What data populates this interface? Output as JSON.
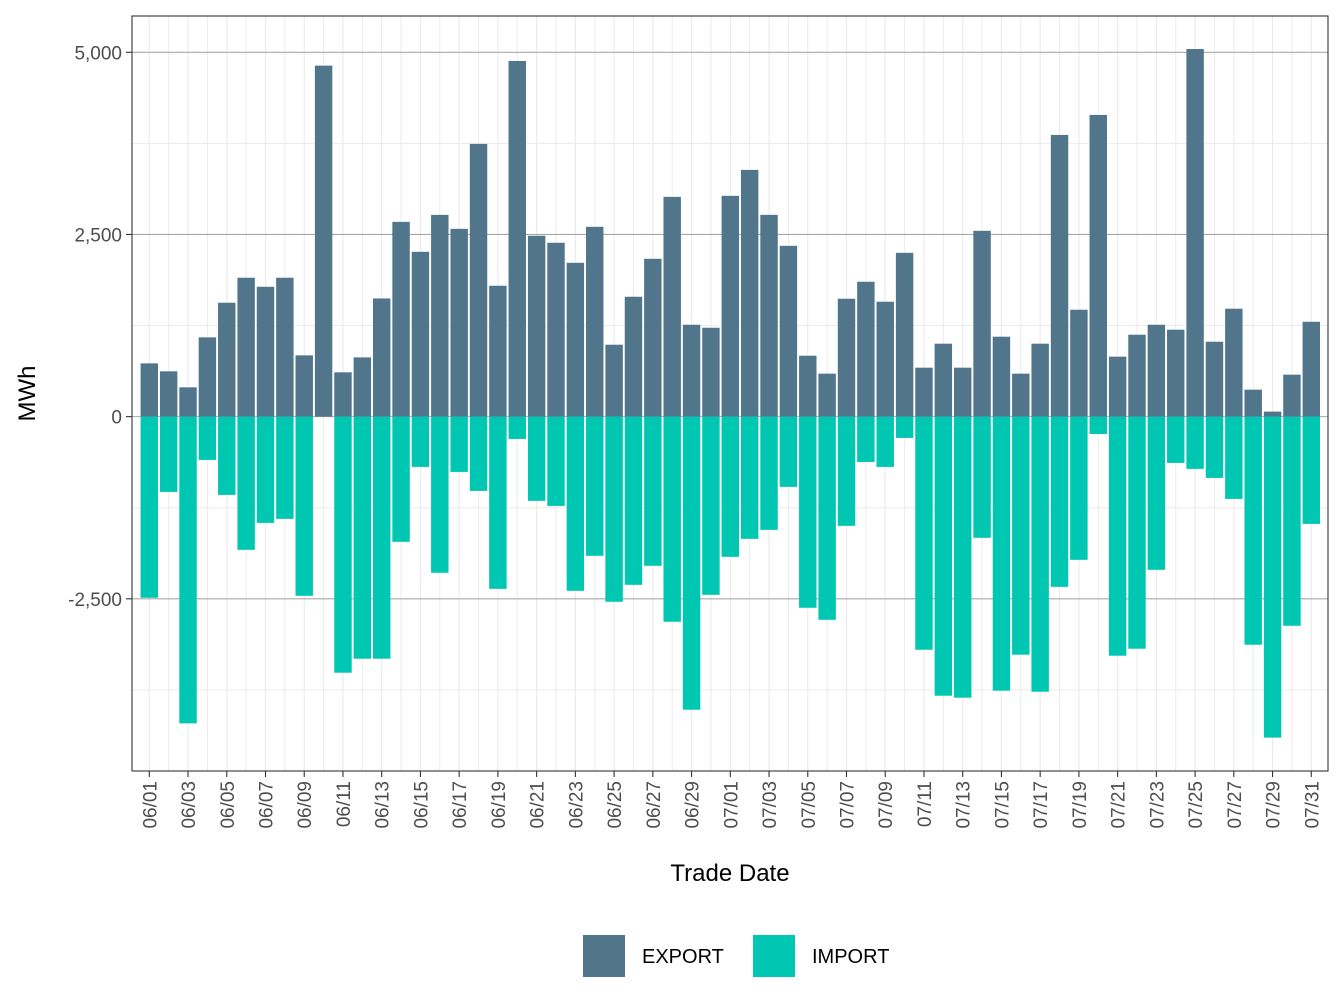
{
  "chart_data": {
    "type": "bar",
    "stacking": "diverging",
    "title": "",
    "xlabel": "Trade Date",
    "ylabel": "MWh",
    "ylim": [
      -4863,
      5498
    ],
    "yticks": [
      -2500,
      0,
      2500,
      5000
    ],
    "ytick_labels": [
      "-2,500",
      "0",
      "2,500",
      "5,000"
    ],
    "grid": true,
    "legend_position": "bottom",
    "categories": [
      "06/01",
      "06/02",
      "06/03",
      "06/04",
      "06/05",
      "06/06",
      "06/07",
      "06/08",
      "06/09",
      "06/10",
      "06/11",
      "06/12",
      "06/13",
      "06/14",
      "06/15",
      "06/16",
      "06/17",
      "06/18",
      "06/19",
      "06/20",
      "06/21",
      "06/22",
      "06/23",
      "06/24",
      "06/25",
      "06/26",
      "06/27",
      "06/28",
      "06/29",
      "06/30",
      "07/01",
      "07/02",
      "07/03",
      "07/04",
      "07/05",
      "07/06",
      "07/07",
      "07/08",
      "07/09",
      "07/10",
      "07/11",
      "07/12",
      "07/13",
      "07/14",
      "07/15",
      "07/16",
      "07/17",
      "07/18",
      "07/19",
      "07/20",
      "07/21",
      "07/22",
      "07/23",
      "07/24",
      "07/25",
      "07/26",
      "07/27",
      "07/28",
      "07/29",
      "07/30",
      "07/31"
    ],
    "xtick_labels": [
      "06/01",
      "06/03",
      "06/05",
      "06/07",
      "06/09",
      "06/11",
      "06/13",
      "06/15",
      "06/17",
      "06/19",
      "06/21",
      "06/23",
      "06/25",
      "06/27",
      "06/29",
      "07/01",
      "07/03",
      "07/05",
      "07/07",
      "07/09",
      "07/11",
      "07/13",
      "07/15",
      "07/17",
      "07/19",
      "07/21",
      "07/23",
      "07/25",
      "07/27",
      "07/29",
      "07/31"
    ],
    "series": [
      {
        "name": "EXPORT",
        "color": "#51758a",
        "values": [
          731,
          622,
          402,
          1088,
          1563,
          1906,
          1782,
          1906,
          841,
          4817,
          608,
          813,
          1622,
          2673,
          2262,
          2769,
          2577,
          3743,
          1796,
          4881,
          2482,
          2386,
          2111,
          2605,
          987,
          1645,
          2166,
          3016,
          1261,
          1220,
          3030,
          3386,
          2769,
          2344,
          836,
          590,
          1618,
          1851,
          1577,
          2248,
          672,
          1001,
          672,
          2550,
          1097,
          590,
          1001,
          3866,
          1467,
          4140,
          823,
          1124,
          1261,
          1193,
          5045,
          1028,
          1481,
          370,
          69,
          576,
          1302
        ]
      },
      {
        "name": "IMPORT",
        "color": "#00c7b2",
        "values": [
          -2486,
          -1033,
          -4209,
          -594,
          -1074,
          -1828,
          -1458,
          -1403,
          -2459,
          0,
          -3514,
          -3322,
          -3322,
          -1718,
          -690,
          -2143,
          -759,
          -1019,
          -2363,
          -306,
          -1156,
          -1225,
          -2390,
          -1910,
          -2541,
          -2308,
          -2047,
          -2815,
          -4022,
          -2445,
          -1924,
          -1677,
          -1554,
          -964,
          -2623,
          -2788,
          -1499,
          -622,
          -690,
          -292,
          -3199,
          -3830,
          -3857,
          -1663,
          -3761,
          -3267,
          -3775,
          -2336,
          -1965,
          -238,
          -3281,
          -3185,
          -2102,
          -635,
          -717,
          -841,
          -1129,
          -3130,
          -4405,
          -2870,
          -1472
        ]
      }
    ]
  }
}
